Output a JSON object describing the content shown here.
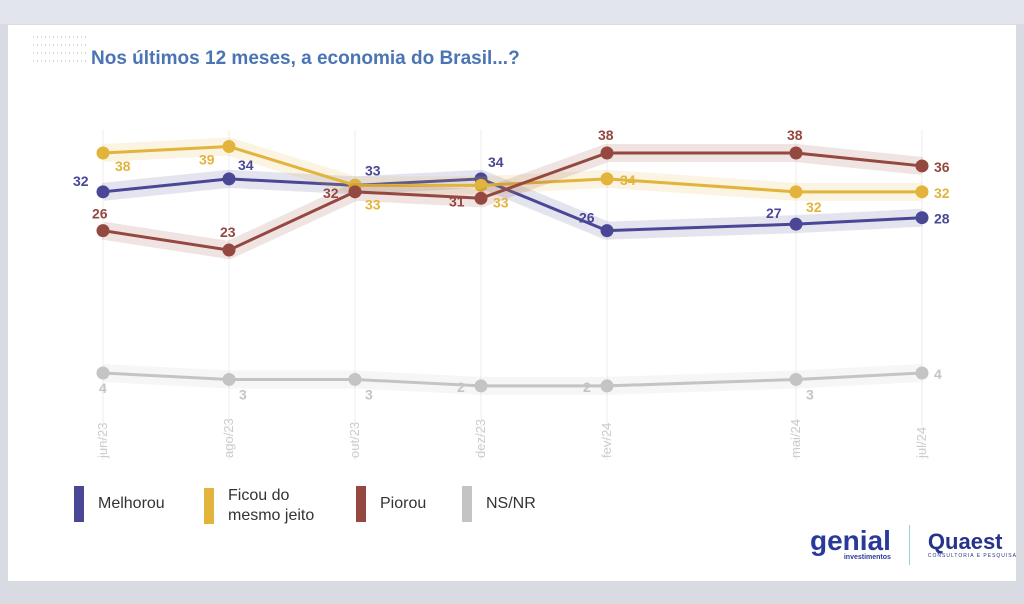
{
  "title": "Nos últimos 12 meses, a economia do Brasil...?",
  "logos": {
    "genial": "genial",
    "genial_sub": "investimentos",
    "quaest": "Quaest",
    "quaest_sub": "CONSULTORIA E PESQUISA"
  },
  "chart_data": {
    "type": "line",
    "title": "Nos últimos 12 meses, a economia do Brasil...?",
    "categories": [
      "jun/23",
      "ago/23",
      "out/23",
      "dez/23",
      "fev/24",
      "mai/24",
      "jul/24"
    ],
    "month_index": [
      0,
      2,
      4,
      6,
      8,
      11,
      13
    ],
    "grid": "vertical",
    "legend_position": "bottom-left",
    "series": [
      {
        "name": "Melhorou",
        "color": "#4a4796",
        "values": [
          32,
          34,
          33,
          34,
          26,
          27,
          28
        ]
      },
      {
        "name": "Ficou do mesmo jeito",
        "color": "#e2b43c",
        "values": [
          38,
          39,
          33,
          33,
          34,
          32,
          32
        ]
      },
      {
        "name": "Piorou",
        "color": "#94483f",
        "values": [
          26,
          23,
          32,
          31,
          38,
          38,
          36
        ]
      },
      {
        "name": "NS/NR",
        "color": "#c4c4c4",
        "values": [
          4,
          3,
          3,
          2,
          2,
          3,
          4
        ]
      }
    ]
  }
}
